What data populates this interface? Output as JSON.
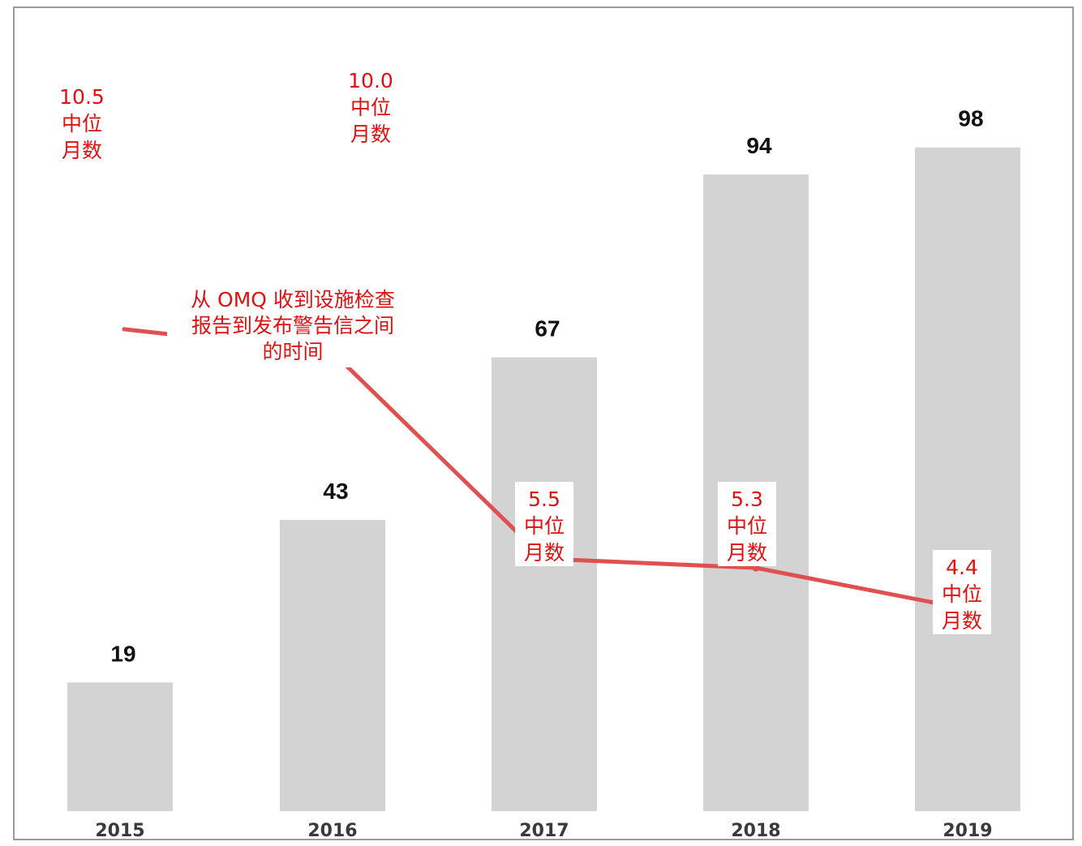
{
  "chart_data": {
    "type": "bar",
    "categories": [
      "2015",
      "2016",
      "2017",
      "2018",
      "2019"
    ],
    "values": [
      19,
      43,
      67,
      94,
      98
    ],
    "bar_color": "#d3d3d3",
    "ylim": [
      0,
      103
    ],
    "grid": false,
    "title": "",
    "xlabel": "",
    "ylabel": "",
    "line_series": {
      "values": [
        10.5,
        10.0,
        5.5,
        5.3,
        4.4
      ],
      "labels": [
        [
          "10.5",
          "中位",
          "月数"
        ],
        [
          "10.0",
          "中位",
          "月数"
        ],
        [
          "5.5",
          "中位",
          "月数"
        ],
        [
          "5.3",
          "中位",
          "月数"
        ],
        [
          "4.4",
          "中位",
          "月数"
        ]
      ],
      "color": "#e05050",
      "label_color": "#e01010",
      "ylim": [
        0,
        15.2
      ]
    },
    "annotation": [
      "从 OMQ 收到设施检查",
      "报告到发布警告信之间",
      "的时间"
    ]
  }
}
